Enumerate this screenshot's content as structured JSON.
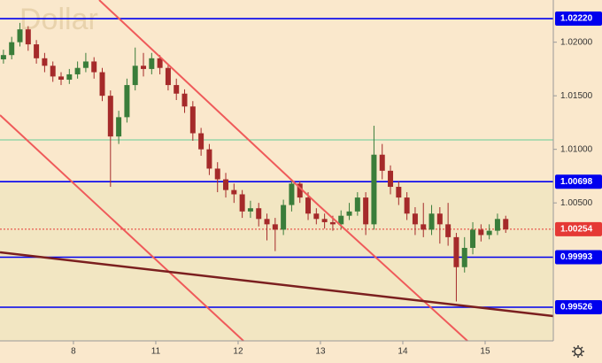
{
  "chart_data": {
    "type": "candlestick",
    "title": "Dollar",
    "x": [
      7.15,
      7.25,
      7.35,
      7.45,
      7.55,
      7.65,
      7.75,
      7.85,
      7.95,
      8.05,
      8.15,
      8.25,
      8.35,
      8.45,
      8.55,
      8.65,
      8.75,
      8.85,
      8.95,
      9.05,
      9.15,
      9.25,
      9.35,
      9.45,
      9.55,
      9.65,
      9.75,
      9.85,
      9.95,
      10.05,
      10.15,
      10.25,
      10.35,
      10.45,
      10.55,
      10.65,
      10.75,
      10.85,
      10.95,
      11.05,
      11.15,
      11.25,
      11.35,
      11.45,
      11.55,
      11.65,
      11.75,
      11.85,
      11.95,
      12.05,
      12.15,
      12.25,
      12.35,
      12.45,
      12.55,
      12.65,
      12.75,
      12.85,
      12.95,
      13.05,
      13.15,
      13.25
    ],
    "open": [
      1.0184,
      1.0188,
      1.02,
      1.0212,
      1.0198,
      1.0185,
      1.0178,
      1.0168,
      1.0165,
      1.017,
      1.0176,
      1.0182,
      1.0172,
      1.015,
      1.0112,
      1.013,
      1.016,
      1.0178,
      1.0175,
      1.0185,
      1.0176,
      1.016,
      1.0152,
      1.014,
      1.0115,
      1.01,
      1.0082,
      1.0072,
      1.0062,
      1.0058,
      1.0042,
      1.0045,
      1.0035,
      1.003,
      1.0025,
      1.0048,
      1.0068,
      1.0055,
      1.004,
      1.0035,
      1.0032,
      1.003,
      1.0038,
      1.0042,
      1.0055,
      1.003,
      1.0095,
      1.008,
      1.0065,
      1.0055,
      1.004,
      1.003,
      1.0025,
      1.004,
      1.003,
      1.0018,
      0.999,
      1.0008,
      1.0025,
      1.002,
      1.0024,
      1.0035
    ],
    "high": [
      1.0193,
      1.0205,
      1.0218,
      1.0215,
      1.0202,
      1.019,
      1.0182,
      1.0172,
      1.0175,
      1.0182,
      1.019,
      1.0186,
      1.0176,
      1.0155,
      1.0136,
      1.0166,
      1.0195,
      1.019,
      1.019,
      1.0188,
      1.018,
      1.0166,
      1.0156,
      1.0145,
      1.012,
      1.0105,
      1.0088,
      1.0078,
      1.0068,
      1.0062,
      1.0052,
      1.005,
      1.004,
      1.0036,
      1.0053,
      1.0072,
      1.007,
      1.006,
      1.0045,
      1.004,
      1.0038,
      1.0043,
      1.005,
      1.006,
      1.006,
      1.0122,
      1.0105,
      1.0085,
      1.007,
      1.006,
      1.0046,
      1.005,
      1.0048,
      1.0046,
      1.005,
      1.0022,
      1.0018,
      1.0032,
      1.003,
      1.003,
      1.004,
      1.0038
    ],
    "low": [
      1.018,
      1.0184,
      1.0196,
      1.0192,
      1.018,
      1.0172,
      1.0163,
      1.016,
      1.0161,
      1.0166,
      1.0172,
      1.0166,
      1.0145,
      1.0065,
      1.0105,
      1.0125,
      1.0155,
      1.0168,
      1.017,
      1.017,
      1.0155,
      1.0146,
      1.0134,
      1.0108,
      1.0094,
      1.0076,
      1.006,
      1.0055,
      1.005,
      1.0036,
      1.0036,
      1.0028,
      1.0015,
      1.0005,
      1.002,
      1.0042,
      1.005,
      1.0034,
      1.003,
      1.0026,
      1.0024,
      1.0026,
      1.0034,
      1.0038,
      1.002,
      1.0025,
      1.0072,
      1.0058,
      1.0048,
      1.0034,
      1.002,
      1.0018,
      1.002,
      1.0012,
      1.001,
      0.9958,
      0.9985,
      1.0002,
      1.0014,
      1.0016,
      1.002,
      1.0022
    ],
    "close": [
      1.0188,
      1.02,
      1.0212,
      1.0198,
      1.0185,
      1.0178,
      1.0168,
      1.0165,
      1.017,
      1.0176,
      1.0182,
      1.0172,
      1.015,
      1.0112,
      1.013,
      1.016,
      1.0178,
      1.0175,
      1.0185,
      1.0176,
      1.016,
      1.0152,
      1.014,
      1.0115,
      1.01,
      1.0082,
      1.0072,
      1.0062,
      1.0058,
      1.0042,
      1.0045,
      1.0035,
      1.003,
      1.0025,
      1.0048,
      1.0068,
      1.0055,
      1.004,
      1.0035,
      1.0032,
      1.003,
      1.0038,
      1.0042,
      1.0055,
      1.003,
      1.0095,
      1.008,
      1.0065,
      1.0055,
      1.004,
      1.003,
      1.0025,
      1.004,
      1.003,
      1.0018,
      0.999,
      1.0008,
      1.0025,
      1.002,
      1.0024,
      1.0035,
      1.00254
    ],
    "up_color": "#3a7d3a",
    "down_color": "#a52a2a",
    "xlim": [
      7.108,
      13.828
    ],
    "xticks": [
      8,
      {
        "value": 9,
        "label": "11"
      },
      {
        "value": 10,
        "label": "12"
      },
      {
        "value": 11,
        "label": "13"
      },
      {
        "value": 12,
        "label": "14"
      },
      {
        "value": 13,
        "label": "15"
      }
    ],
    "ylim": [
      0.99212,
      1.02394
    ],
    "yticks": [
      {
        "value": 1.02,
        "label": "1.02000"
      },
      {
        "value": 1.015,
        "label": "1.01500"
      },
      {
        "value": 1.01,
        "label": "1.01000"
      },
      {
        "value": 1.005,
        "label": "1.00500"
      }
    ],
    "levels": [
      {
        "value": 1.0222,
        "label": "1.02220",
        "color": "#0000ee"
      },
      {
        "value": 1.00698,
        "label": "1.00698",
        "color": "#0000ee"
      },
      {
        "value": 0.99993,
        "label": "0.99993",
        "color": "#0000ee"
      },
      {
        "value": 0.99526,
        "label": "0.99526",
        "color": "#0000ee"
      }
    ],
    "support_line": {
      "value": 1.01088,
      "color": "#66cc99"
    },
    "last_price": {
      "value": 1.00254,
      "label": "1.00254",
      "color": "#e53935"
    }
  }
}
